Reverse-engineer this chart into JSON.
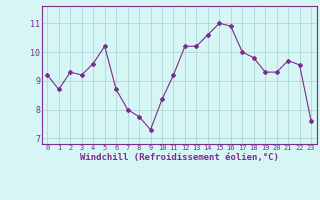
{
  "x": [
    0,
    1,
    2,
    3,
    4,
    5,
    6,
    7,
    8,
    9,
    10,
    11,
    12,
    13,
    14,
    15,
    16,
    17,
    18,
    19,
    20,
    21,
    22,
    23
  ],
  "y": [
    9.2,
    8.7,
    9.3,
    9.2,
    9.6,
    10.2,
    8.7,
    8.0,
    7.75,
    7.3,
    8.35,
    9.2,
    10.2,
    10.2,
    10.6,
    11.0,
    10.9,
    10.0,
    9.8,
    9.3,
    9.3,
    9.7,
    9.55,
    7.6
  ],
  "line_color": "#7b2d8b",
  "marker": "D",
  "marker_size": 2,
  "bg_color": "#d6f5f5",
  "grid_color": "#aed8d8",
  "xlabel": "Windchill (Refroidissement éolien,°C)",
  "xlabel_color": "#7b2d8b",
  "ylim": [
    6.8,
    11.6
  ],
  "xlim": [
    -0.5,
    23.5
  ],
  "yticks": [
    7,
    8,
    9,
    10,
    11
  ],
  "xticks": [
    0,
    1,
    2,
    3,
    4,
    5,
    6,
    7,
    8,
    9,
    10,
    11,
    12,
    13,
    14,
    15,
    16,
    17,
    18,
    19,
    20,
    21,
    22,
    23
  ],
  "tick_color": "#7b2d8b",
  "spine_color": "#7b2d8b"
}
